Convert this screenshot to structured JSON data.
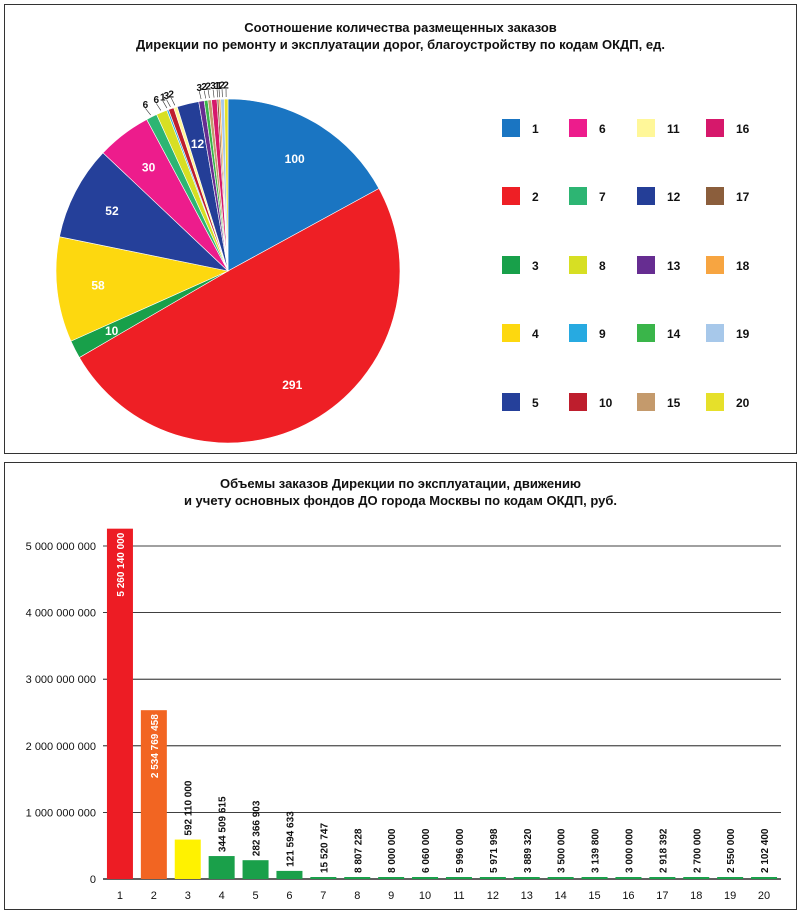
{
  "chart_data": [
    {
      "type": "pie",
      "title": "Соотношение количества размещенных заказов",
      "subtitle": "Дирекции по ремонту и эксплуатации дорог, благоустройству по кодам ОКДП, ед.",
      "legend_position": "right",
      "slices": [
        {
          "name": "1",
          "value": 100,
          "color": "#1a75c2"
        },
        {
          "name": "2",
          "value": 291,
          "color": "#ee1f25"
        },
        {
          "name": "3",
          "value": 10,
          "color": "#18a04a"
        },
        {
          "name": "4",
          "value": 58,
          "color": "#fdd80f"
        },
        {
          "name": "5",
          "value": 52,
          "color": "#25409a"
        },
        {
          "name": "6",
          "value": 30,
          "color": "#ed1c8c"
        },
        {
          "name": "7",
          "value": 6,
          "color": "#2db573"
        },
        {
          "name": "8",
          "value": 6,
          "color": "#d7df23"
        },
        {
          "name": "9",
          "value": 1,
          "color": "#27aae1"
        },
        {
          "name": "10",
          "value": 3,
          "color": "#be1e2d"
        },
        {
          "name": "11",
          "value": 2,
          "color": "#fff799"
        },
        {
          "name": "12",
          "value": 12,
          "color": "#243e97"
        },
        {
          "name": "13",
          "value": 3,
          "color": "#662d91"
        },
        {
          "name": "14",
          "value": 2,
          "color": "#3ab54a"
        },
        {
          "name": "15",
          "value": 2,
          "color": "#c49a6c"
        },
        {
          "name": "16",
          "value": 3,
          "color": "#d6186b"
        },
        {
          "name": "17",
          "value": 1,
          "color": "#8b5e3c"
        },
        {
          "name": "18",
          "value": 1,
          "color": "#f7a541"
        },
        {
          "name": "19",
          "value": 2,
          "color": "#a7c8ea"
        },
        {
          "name": "20",
          "value": 2,
          "color": "#e6e02a"
        }
      ]
    },
    {
      "type": "bar",
      "title": "Объемы заказов Дирекции по эксплуатации, движению",
      "subtitle": "и учету основных фондов ДО города Москвы по кодам ОКДП, руб.",
      "grid": true,
      "ylim": [
        0,
        5000000000
      ],
      "yticks": [
        {
          "value": 0,
          "label": "0"
        },
        {
          "value": 1000000000,
          "label": "1 000 000 000"
        },
        {
          "value": 2000000000,
          "label": "2 000 000 000"
        },
        {
          "value": 3000000000,
          "label": "3 000 000 000"
        },
        {
          "value": 4000000000,
          "label": "4 000 000 000"
        },
        {
          "value": 5000000000,
          "label": "5 000 000 000"
        }
      ],
      "categories": [
        "1",
        "2",
        "3",
        "4",
        "5",
        "6",
        "7",
        "8",
        "9",
        "10",
        "11",
        "12",
        "13",
        "14",
        "15",
        "16",
        "17",
        "18",
        "19",
        "20"
      ],
      "values": [
        5260140000,
        2534769458,
        592110000,
        344509615,
        282366903,
        121594633,
        15520747,
        8807228,
        8000000,
        6060000,
        5996000,
        5971998,
        3889320,
        3500000,
        3139800,
        3000000,
        2918392,
        2700000,
        2550000,
        2102400
      ],
      "value_labels": [
        "5 260 140 000",
        "2 534 769 458",
        "592 110 000",
        "344 509 615",
        "282 366 903",
        "121 594 633",
        "15 520 747",
        "8 807 228",
        "8 000 000",
        "6 060 000",
        "5 996 000",
        "5 971 998",
        "3 889 320",
        "3 500 000",
        "3 139 800",
        "3 000 000",
        "2 918 392",
        "2 700 000",
        "2 550 000",
        "2 102 400"
      ],
      "colors": [
        "#ed1c24",
        "#f26522",
        "#fff200",
        "#1aa04a",
        "#1aa04a",
        "#1aa04a",
        "#1aa04a",
        "#1aa04a",
        "#1aa04a",
        "#1aa04a",
        "#1aa04a",
        "#1aa04a",
        "#1aa04a",
        "#1aa04a",
        "#1aa04a",
        "#1aa04a",
        "#1aa04a",
        "#1aa04a",
        "#1aa04a",
        "#1aa04a"
      ]
    }
  ]
}
